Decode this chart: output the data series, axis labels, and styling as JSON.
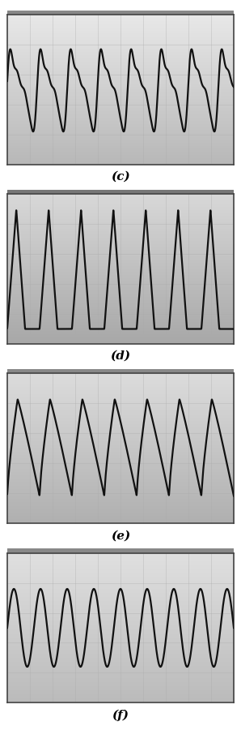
{
  "panels": [
    {
      "label": "(c)",
      "waveform_type": "c",
      "bg_top": "#e8e8e8",
      "bg_bottom": "#b8b8b8",
      "header_color": "#888888"
    },
    {
      "label": "(d)",
      "waveform_type": "d",
      "bg_top": "#d8d8d8",
      "bg_bottom": "#a8a8a8",
      "header_color": "#777777"
    },
    {
      "label": "(e)",
      "waveform_type": "e",
      "bg_top": "#dcdcdc",
      "bg_bottom": "#b0b0b0",
      "header_color": "#888888"
    },
    {
      "label": "(f)",
      "waveform_type": "f",
      "bg_top": "#e0e0e0",
      "bg_bottom": "#bbbbbb",
      "header_color": "#888888"
    }
  ],
  "grid_nx": 10,
  "grid_ny": 5,
  "grid_color": "#aaaaaa",
  "grid_alpha": 0.6,
  "line_color": "#111111",
  "line_width": 1.6,
  "label_fontsize": 11,
  "figwidth": 2.98,
  "figheight": 9.12,
  "dpi": 100
}
